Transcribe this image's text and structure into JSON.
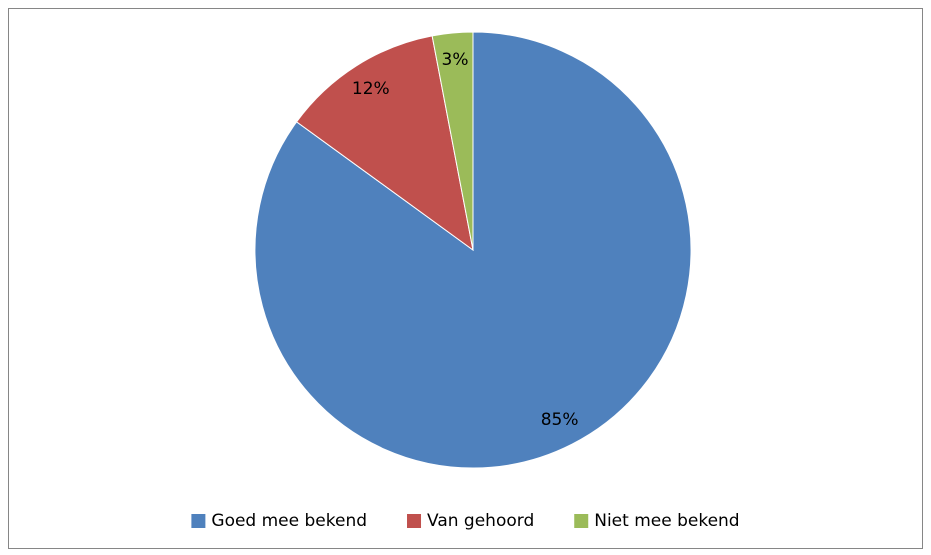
{
  "chart_data": {
    "type": "pie",
    "categories": [
      "Goed mee bekend",
      "Van gehoord",
      "Niet mee bekend"
    ],
    "values": [
      85,
      12,
      3
    ],
    "value_labels": [
      "85%",
      "12%",
      "3%"
    ],
    "colors": [
      "#4f81bd",
      "#c0504d",
      "#9bbb59"
    ],
    "legend": "bottom"
  }
}
